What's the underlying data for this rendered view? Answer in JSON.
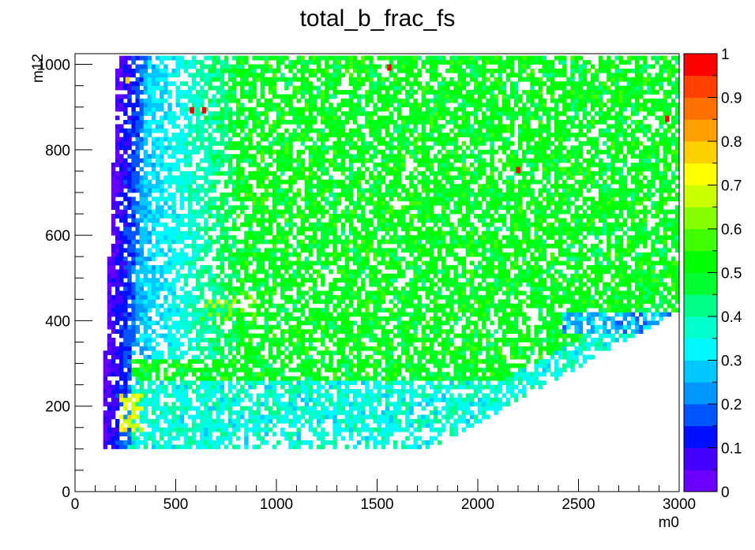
{
  "chart_data": {
    "type": "heatmap",
    "title": "total_b_frac_fs",
    "xlabel": "m0",
    "ylabel": "m12",
    "xlim": [
      0,
      3000
    ],
    "ylim": [
      0,
      1025
    ],
    "x_ticks": [
      0,
      500,
      1000,
      1500,
      2000,
      2500,
      3000
    ],
    "y_ticks": [
      0,
      200,
      400,
      600,
      800,
      1000
    ],
    "bin_width_x": 20,
    "bin_width_y": 10,
    "z_range": [
      0,
      1
    ],
    "z_ticks": [
      0,
      0.1,
      0.2,
      0.3,
      0.4,
      0.5,
      0.6,
      0.7,
      0.8,
      0.9,
      1
    ],
    "palette": [
      "#6a00ff",
      "#4400ff",
      "#0010ff",
      "#0055ff",
      "#0096ff",
      "#00c8ff",
      "#00f8ff",
      "#00ffcc",
      "#00ff88",
      "#00ff30",
      "#00ff00",
      "#40ff00",
      "#88ff00",
      "#ccff00",
      "#ffff00",
      "#ffd000",
      "#ffa000",
      "#ff7000",
      "#ff4000",
      "#ff0000"
    ],
    "populated_region": "m12 from 100 to 1020; left edge near m0 = 140 at m12 = 100 rising to m0 = 220 at m12 = 1000; right edge bounded by m0 approx 1780 at m12 = 100 rising to m0 = 3000 at m12 = 420",
    "value_trends": "approx 0.05 to 0.15 (blue/violet) at the low-m0 edge; approx 0.3 to 0.4 (cyan) around m0 = 400 to 800 and near the lower boundary; approx 0.5 (green) over the bulk of the plane; approx 0.65 to 0.75 (yellow-green) near m0 = 250, m12 = 150 to 220",
    "hot_cells": [
      {
        "x": 570,
        "y": 890,
        "z": 0.97
      },
      {
        "x": 630,
        "y": 890,
        "z": 0.97
      },
      {
        "x": 1550,
        "y": 990,
        "z": 0.97
      },
      {
        "x": 2190,
        "y": 750,
        "z": 0.97
      },
      {
        "x": 2930,
        "y": 870,
        "z": 0.97
      },
      {
        "x": 250,
        "y": 960,
        "z": 0.78
      }
    ]
  }
}
